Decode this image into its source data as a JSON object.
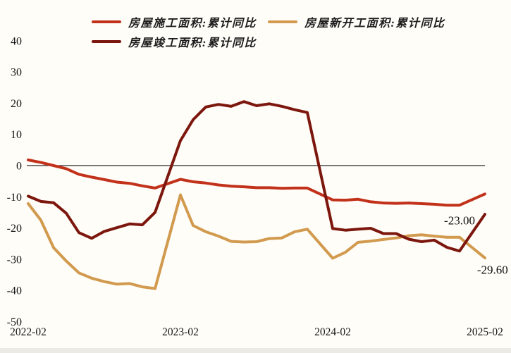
{
  "legend": {
    "items": [
      {
        "id": "construction",
        "label": "房屋施工面积:累计同比",
        "color": "#c2321b"
      },
      {
        "id": "new-starts",
        "label": "房屋新开工面积:累计同比",
        "color": "#d19a4e"
      },
      {
        "id": "completion",
        "label": "房屋竣工面积:累计同比",
        "color": "#7c170e"
      }
    ]
  },
  "chart_data": {
    "type": "line",
    "title": "",
    "xlabel": "",
    "ylabel": "",
    "x_unit": "months since 2022-02 (January data omitted each year)",
    "xlim": [
      0,
      36
    ],
    "ylim": [
      -50,
      40
    ],
    "grid": false,
    "zero_line": true,
    "zero_line_color": "#2a2a2a",
    "legend_position": "top",
    "y_ticks": [
      40,
      30,
      20,
      10,
      0,
      -10,
      -20,
      -30,
      -40,
      -50
    ],
    "x_tick_positions": [
      0,
      12,
      24,
      36
    ],
    "x_tick_labels": [
      "2022-02",
      "2023-02",
      "2024-02",
      "2025-02"
    ],
    "x": [
      0,
      1,
      2,
      3,
      4,
      5,
      6,
      7,
      8,
      9,
      10,
      12,
      13,
      14,
      15,
      16,
      17,
      18,
      19,
      20,
      21,
      22,
      24,
      25,
      26,
      27,
      28,
      29,
      30,
      31,
      32,
      33,
      34,
      36
    ],
    "series": [
      {
        "id": "construction",
        "name": "房屋施工面积:累计同比",
        "color": "#c2321b",
        "values": [
          1.8,
          1.0,
          0.0,
          -1.0,
          -2.8,
          -3.7,
          -4.5,
          -5.3,
          -5.7,
          -6.5,
          -7.2,
          -4.4,
          -5.2,
          -5.6,
          -6.2,
          -6.6,
          -6.8,
          -7.1,
          -7.1,
          -7.3,
          -7.2,
          -7.2,
          -11.0,
          -11.1,
          -10.8,
          -11.6,
          -12.0,
          -12.1,
          -12.0,
          -12.2,
          -12.4,
          -12.7,
          -12.7,
          -9.1
        ]
      },
      {
        "id": "new-starts",
        "name": "房屋新开工面积:累计同比",
        "color": "#d19a4e",
        "values": [
          -12.2,
          -17.5,
          -26.3,
          -30.6,
          -34.4,
          -36.1,
          -37.2,
          -38.0,
          -37.8,
          -38.9,
          -39.4,
          -9.4,
          -19.2,
          -21.2,
          -22.6,
          -24.3,
          -24.5,
          -24.4,
          -23.4,
          -23.2,
          -21.2,
          -20.4,
          -29.7,
          -27.8,
          -24.6,
          -24.2,
          -23.7,
          -23.2,
          -22.5,
          -22.2,
          -22.6,
          -23.0,
          -23.0,
          -29.6
        ]
      },
      {
        "id": "completion",
        "name": "房屋竣工面积:累计同比",
        "color": "#7c170e",
        "values": [
          -9.8,
          -11.5,
          -11.9,
          -15.3,
          -21.5,
          -23.3,
          -21.1,
          -19.9,
          -18.7,
          -19.0,
          -15.0,
          8.0,
          14.7,
          18.8,
          19.6,
          19.0,
          20.5,
          19.2,
          19.8,
          19.0,
          17.9,
          17.0,
          -20.2,
          -20.7,
          -20.4,
          -20.1,
          -21.8,
          -21.8,
          -23.6,
          -24.4,
          -23.9,
          -26.2,
          -27.4,
          -15.6
        ]
      }
    ],
    "annotations": [
      {
        "text": "-23.00",
        "x": 34.0,
        "y": -17.5
      },
      {
        "text": "-29.60",
        "x": 36.6,
        "y": -33.3
      }
    ]
  }
}
